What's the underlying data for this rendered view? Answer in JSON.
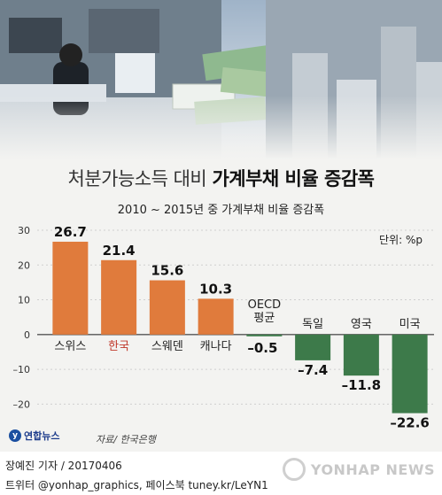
{
  "title_light": "처분가능소득 대비",
  "title_bold": "가계부채 비율 증감폭",
  "subtitle": "2010 ~ 2015년 중 가계부채 비율 증감폭",
  "unit": "단위: %p",
  "source": "자료/ 한국은행",
  "logo_text": "연합뉴스",
  "credit_line1": "장예진 기자 / 20170406",
  "credit_line2": "트위터 @yonhap_graphics, 페이스북 tuney.kr/LeYN1",
  "watermark": "YONHAP NEWS",
  "colors": {
    "positive": "#e07b3c",
    "negative": "#3d7a4a",
    "highlight_label": "#c0392b",
    "axis": "#555555"
  },
  "chart_data": {
    "type": "bar",
    "categories": [
      "스위스",
      "한국",
      "스웨덴",
      "캐나다",
      "OECD 평균",
      "독일",
      "영국",
      "미국"
    ],
    "category_label_lines": [
      [
        "스위스"
      ],
      [
        "한국"
      ],
      [
        "스웨덴"
      ],
      [
        "캐나다"
      ],
      [
        "OECD",
        "평균"
      ],
      [
        "독일"
      ],
      [
        "영국"
      ],
      [
        "미국"
      ]
    ],
    "values": [
      26.7,
      21.4,
      15.6,
      10.3,
      -0.5,
      -7.4,
      -11.8,
      -22.6
    ],
    "value_labels": [
      "26.7",
      "21.4",
      "15.6",
      "10.3",
      "–0.5",
      "–7.4",
      "–11.8",
      "–22.6"
    ],
    "highlight_category": "한국",
    "yticks": [
      30,
      20,
      10,
      0,
      -10,
      -20
    ],
    "ytick_labels": [
      "30",
      "20",
      "10",
      "0",
      "–10",
      "–20"
    ],
    "ylim": [
      -25,
      30
    ],
    "grid": true,
    "xlabel": "",
    "ylabel": ""
  }
}
